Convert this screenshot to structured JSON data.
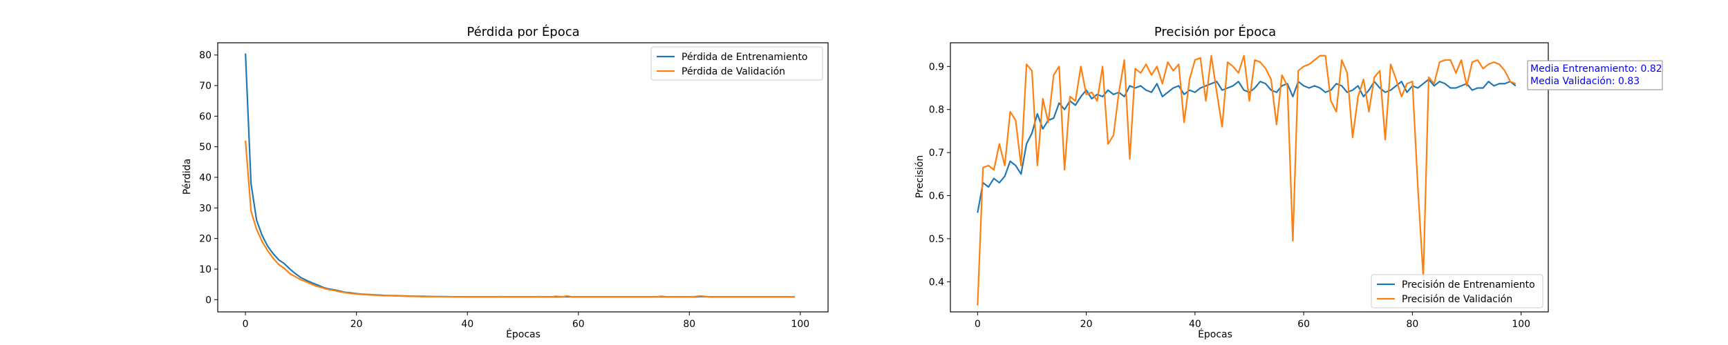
{
  "chart_data": [
    {
      "type": "line",
      "title": "Pérdida por Época",
      "xlabel": "Épocas",
      "ylabel": "Pérdida",
      "xlim": [
        -5,
        105
      ],
      "ylim": [
        -4,
        84
      ],
      "xticks": [
        0,
        20,
        40,
        60,
        80,
        100
      ],
      "yticks": [
        0,
        10,
        20,
        30,
        40,
        50,
        60,
        70,
        80
      ],
      "legend_position": "top-right",
      "grid": false,
      "series": [
        {
          "name": "Pérdida de Entrenamiento",
          "color": "#1f77b4",
          "x": [
            0,
            1,
            2,
            3,
            4,
            5,
            6,
            7,
            8,
            9,
            10,
            11,
            12,
            13,
            14,
            15,
            16,
            17,
            18,
            19,
            20,
            21,
            22,
            23,
            24,
            25,
            26,
            27,
            28,
            29,
            30,
            31,
            32,
            33,
            34,
            35,
            36,
            37,
            38,
            39,
            40,
            41,
            42,
            43,
            44,
            45,
            46,
            47,
            48,
            49,
            50,
            51,
            52,
            53,
            54,
            55,
            56,
            57,
            58,
            59,
            60,
            61,
            62,
            63,
            64,
            65,
            66,
            67,
            68,
            69,
            70,
            71,
            72,
            73,
            74,
            75,
            76,
            77,
            78,
            79,
            80,
            81,
            82,
            83,
            84,
            85,
            86,
            87,
            88,
            89,
            90,
            91,
            92,
            93,
            94,
            95,
            96,
            97,
            98,
            99
          ],
          "values": [
            80.5,
            38.0,
            26.0,
            21.0,
            17.5,
            15.0,
            13.0,
            11.8,
            10.0,
            8.5,
            7.2,
            6.3,
            5.5,
            4.8,
            4.0,
            3.5,
            3.2,
            2.8,
            2.4,
            2.2,
            2.0,
            1.8,
            1.7,
            1.6,
            1.5,
            1.4,
            1.35,
            1.3,
            1.25,
            1.2,
            1.15,
            1.1,
            1.1,
            1.05,
            1.0,
            1.0,
            1.0,
            0.95,
            0.95,
            0.95,
            0.9,
            0.9,
            0.9,
            0.9,
            0.9,
            0.9,
            0.95,
            0.9,
            0.9,
            0.9,
            0.9,
            0.9,
            0.9,
            0.95,
            0.9,
            0.9,
            0.9,
            0.9,
            0.95,
            0.9,
            0.9,
            0.9,
            0.9,
            0.9,
            0.9,
            0.9,
            0.9,
            0.9,
            0.9,
            0.9,
            0.9,
            0.9,
            0.9,
            0.9,
            0.9,
            0.95,
            0.9,
            0.9,
            0.9,
            0.9,
            0.9,
            0.9,
            1.0,
            0.95,
            0.9,
            0.9,
            0.9,
            0.9,
            0.9,
            0.9,
            0.9,
            0.9,
            0.9,
            0.9,
            0.9,
            0.9,
            0.9,
            0.9,
            0.9,
            0.9
          ]
        },
        {
          "name": "Pérdida de Validación",
          "color": "#ff7f0e",
          "x": [
            0,
            1,
            2,
            3,
            4,
            5,
            6,
            7,
            8,
            9,
            10,
            11,
            12,
            13,
            14,
            15,
            16,
            17,
            18,
            19,
            20,
            21,
            22,
            23,
            24,
            25,
            26,
            27,
            28,
            29,
            30,
            31,
            32,
            33,
            34,
            35,
            36,
            37,
            38,
            39,
            40,
            41,
            42,
            43,
            44,
            45,
            46,
            47,
            48,
            49,
            50,
            51,
            52,
            53,
            54,
            55,
            56,
            57,
            58,
            59,
            60,
            61,
            62,
            63,
            64,
            65,
            66,
            67,
            68,
            69,
            70,
            71,
            72,
            73,
            74,
            75,
            76,
            77,
            78,
            79,
            80,
            81,
            82,
            83,
            84,
            85,
            86,
            87,
            88,
            89,
            90,
            91,
            92,
            93,
            94,
            95,
            96,
            97,
            98,
            99
          ],
          "values": [
            52.0,
            29.0,
            23.0,
            19.0,
            16.0,
            13.5,
            11.5,
            10.2,
            8.5,
            7.5,
            6.5,
            5.8,
            5.0,
            4.3,
            3.8,
            3.3,
            3.0,
            2.6,
            2.3,
            2.0,
            1.9,
            1.7,
            1.6,
            1.5,
            1.4,
            1.3,
            1.3,
            1.2,
            1.2,
            1.1,
            1.1,
            1.05,
            1.0,
            1.0,
            1.0,
            0.95,
            0.95,
            0.95,
            0.9,
            0.9,
            0.9,
            0.9,
            0.9,
            0.9,
            0.9,
            0.9,
            1.0,
            0.9,
            0.9,
            0.9,
            0.9,
            0.9,
            0.9,
            1.0,
            0.9,
            0.9,
            1.1,
            0.9,
            1.2,
            0.9,
            0.9,
            0.9,
            0.9,
            0.9,
            0.9,
            0.9,
            0.9,
            0.9,
            0.9,
            0.9,
            0.9,
            0.9,
            0.9,
            0.9,
            0.9,
            1.1,
            0.9,
            0.9,
            0.9,
            0.9,
            0.9,
            1.0,
            1.2,
            1.0,
            0.9,
            0.9,
            0.9,
            0.9,
            0.9,
            0.9,
            0.9,
            0.9,
            0.9,
            0.9,
            0.9,
            0.9,
            0.9,
            0.9,
            0.9,
            0.9
          ]
        }
      ]
    },
    {
      "type": "line",
      "title": "Precisión por Época",
      "xlabel": "Épocas",
      "ylabel": "Precisión",
      "xlim": [
        -5,
        105
      ],
      "ylim": [
        0.33,
        0.955
      ],
      "xticks": [
        0,
        20,
        40,
        60,
        80,
        100
      ],
      "yticks": [
        0.4,
        0.5,
        0.6,
        0.7,
        0.8,
        0.9
      ],
      "legend_position": "bottom-right",
      "grid": false,
      "annotation_lines": [
        "Media Entrenamiento: 0.82",
        "Media Validación: 0.83"
      ],
      "series": [
        {
          "name": "Precisión de Entrenamiento",
          "color": "#1f77b4",
          "x": [
            0,
            1,
            2,
            3,
            4,
            5,
            6,
            7,
            8,
            9,
            10,
            11,
            12,
            13,
            14,
            15,
            16,
            17,
            18,
            19,
            20,
            21,
            22,
            23,
            24,
            25,
            26,
            27,
            28,
            29,
            30,
            31,
            32,
            33,
            34,
            35,
            36,
            37,
            38,
            39,
            40,
            41,
            42,
            43,
            44,
            45,
            46,
            47,
            48,
            49,
            50,
            51,
            52,
            53,
            54,
            55,
            56,
            57,
            58,
            59,
            60,
            61,
            62,
            63,
            64,
            65,
            66,
            67,
            68,
            69,
            70,
            71,
            72,
            73,
            74,
            75,
            76,
            77,
            78,
            79,
            80,
            81,
            82,
            83,
            84,
            85,
            86,
            87,
            88,
            89,
            90,
            91,
            92,
            93,
            94,
            95,
            96,
            97,
            98,
            99
          ],
          "values": [
            0.56,
            0.63,
            0.62,
            0.64,
            0.63,
            0.645,
            0.68,
            0.67,
            0.65,
            0.72,
            0.745,
            0.79,
            0.755,
            0.775,
            0.78,
            0.815,
            0.8,
            0.82,
            0.81,
            0.83,
            0.845,
            0.825,
            0.835,
            0.83,
            0.845,
            0.835,
            0.84,
            0.83,
            0.855,
            0.85,
            0.855,
            0.845,
            0.84,
            0.86,
            0.83,
            0.84,
            0.85,
            0.855,
            0.835,
            0.845,
            0.84,
            0.85,
            0.855,
            0.86,
            0.865,
            0.845,
            0.85,
            0.855,
            0.865,
            0.845,
            0.84,
            0.85,
            0.865,
            0.86,
            0.845,
            0.84,
            0.855,
            0.86,
            0.83,
            0.865,
            0.855,
            0.85,
            0.855,
            0.85,
            0.84,
            0.845,
            0.86,
            0.855,
            0.84,
            0.845,
            0.855,
            0.83,
            0.845,
            0.865,
            0.85,
            0.84,
            0.845,
            0.855,
            0.865,
            0.84,
            0.855,
            0.85,
            0.86,
            0.87,
            0.855,
            0.865,
            0.86,
            0.85,
            0.85,
            0.855,
            0.86,
            0.845,
            0.85,
            0.85,
            0.865,
            0.855,
            0.86,
            0.86,
            0.865,
            0.855
          ]
        },
        {
          "name": "Precisión de Validación",
          "color": "#ff7f0e",
          "x": [
            0,
            1,
            2,
            3,
            4,
            5,
            6,
            7,
            8,
            9,
            10,
            11,
            12,
            13,
            14,
            15,
            16,
            17,
            18,
            19,
            20,
            21,
            22,
            23,
            24,
            25,
            26,
            27,
            28,
            29,
            30,
            31,
            32,
            33,
            34,
            35,
            36,
            37,
            38,
            39,
            40,
            41,
            42,
            43,
            44,
            45,
            46,
            47,
            48,
            49,
            50,
            51,
            52,
            53,
            54,
            55,
            56,
            57,
            58,
            59,
            60,
            61,
            62,
            63,
            64,
            65,
            66,
            67,
            68,
            69,
            70,
            71,
            72,
            73,
            74,
            75,
            76,
            77,
            78,
            79,
            80,
            81,
            82,
            83,
            84,
            85,
            86,
            87,
            88,
            89,
            90,
            91,
            92,
            93,
            94,
            95,
            96,
            97,
            98,
            99
          ],
          "values": [
            0.345,
            0.665,
            0.67,
            0.66,
            0.72,
            0.67,
            0.795,
            0.775,
            0.67,
            0.905,
            0.89,
            0.67,
            0.825,
            0.77,
            0.88,
            0.9,
            0.66,
            0.83,
            0.82,
            0.9,
            0.835,
            0.84,
            0.82,
            0.9,
            0.72,
            0.74,
            0.84,
            0.915,
            0.685,
            0.895,
            0.885,
            0.905,
            0.88,
            0.9,
            0.86,
            0.91,
            0.89,
            0.905,
            0.77,
            0.87,
            0.915,
            0.92,
            0.82,
            0.925,
            0.84,
            0.76,
            0.91,
            0.9,
            0.885,
            0.925,
            0.82,
            0.915,
            0.91,
            0.895,
            0.87,
            0.765,
            0.88,
            0.855,
            0.495,
            0.89,
            0.9,
            0.905,
            0.915,
            0.925,
            0.925,
            0.82,
            0.795,
            0.915,
            0.885,
            0.735,
            0.83,
            0.87,
            0.795,
            0.875,
            0.89,
            0.73,
            0.905,
            0.87,
            0.83,
            0.86,
            0.865,
            0.62,
            0.41,
            0.875,
            0.86,
            0.91,
            0.915,
            0.915,
            0.885,
            0.915,
            0.855,
            0.91,
            0.915,
            0.895,
            0.905,
            0.91,
            0.905,
            0.89,
            0.865,
            0.86
          ]
        }
      ]
    }
  ]
}
